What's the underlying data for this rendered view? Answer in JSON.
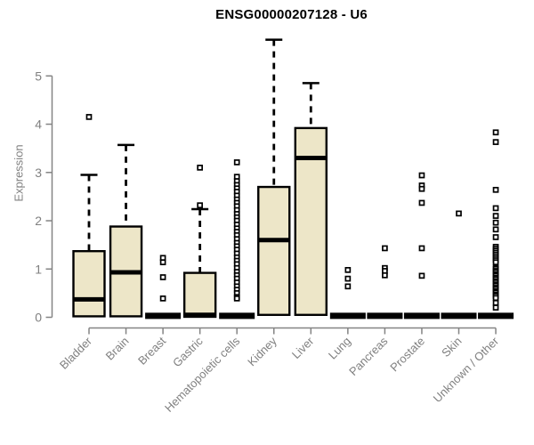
{
  "page": {
    "background": "#ffffff"
  },
  "chart_data": {
    "type": "boxplot",
    "title": "ENSG00000207128 - U6",
    "ylabel": "Expression",
    "xlabel": "",
    "ylim": [
      0,
      5
    ],
    "yticks": [
      0,
      1,
      2,
      3,
      4,
      5
    ],
    "grid": false,
    "legend_position": "none",
    "box_fill": "#EDE6C8",
    "box_stroke": "#000000",
    "axis_color": "#848484",
    "tick_label_color": "#808080",
    "title_color": "#000000",
    "categories": [
      "Bladder",
      "Brain",
      "Breast",
      "Gastric",
      "Hematopoietic cells",
      "Kidney",
      "Liver",
      "Lung",
      "Pancreas",
      "Prostate",
      "Skin",
      "Unknown / Other"
    ],
    "series": [
      {
        "name": "Bladder",
        "whisker_low": 0,
        "q1": 0.02,
        "median": 0.37,
        "q3": 1.37,
        "whisker_high": 2.95,
        "outliers": [
          4.15
        ]
      },
      {
        "name": "Brain",
        "whisker_low": 0,
        "q1": 0.02,
        "median": 0.93,
        "q3": 1.88,
        "whisker_high": 3.57,
        "outliers": []
      },
      {
        "name": "Breast",
        "whisker_low": 0,
        "q1": 0,
        "median": 0.03,
        "q3": 0.05,
        "whisker_high": 0.05,
        "outliers": [
          1.23,
          1.14,
          0.83,
          0.39
        ]
      },
      {
        "name": "Gastric",
        "whisker_low": 0,
        "q1": 0.01,
        "median": 0.05,
        "q3": 0.92,
        "whisker_high": 2.24,
        "outliers": [
          3.1,
          2.32
        ]
      },
      {
        "name": "Hematopoietic cells",
        "whisker_low": 0,
        "q1": 0,
        "median": 0.03,
        "q3": 0.05,
        "whisker_high": 0.05,
        "outliers": [
          3.21,
          2.91,
          2.82,
          2.74,
          2.67,
          2.6,
          2.52,
          2.44,
          2.37,
          2.3,
          2.22,
          2.14,
          2.07,
          2.0,
          1.92,
          1.84,
          1.77,
          1.7,
          1.62,
          1.54,
          1.47,
          1.4,
          1.32,
          1.24,
          1.17,
          1.1,
          1.02,
          0.94,
          0.87,
          0.8,
          0.72,
          0.64,
          0.57,
          0.5,
          0.42,
          0.39
        ]
      },
      {
        "name": "Kidney",
        "whisker_low": 0,
        "q1": 0.05,
        "median": 1.6,
        "q3": 2.7,
        "whisker_high": 5.75,
        "outliers": []
      },
      {
        "name": "Liver",
        "whisker_low": 0,
        "q1": 0.05,
        "median": 3.3,
        "q3": 3.92,
        "whisker_high": 4.85,
        "outliers": []
      },
      {
        "name": "Lung",
        "whisker_low": 0,
        "q1": 0,
        "median": 0.03,
        "q3": 0.05,
        "whisker_high": 0.05,
        "outliers": [
          0.98,
          0.8,
          0.64
        ]
      },
      {
        "name": "Pancreas",
        "whisker_low": 0,
        "q1": 0,
        "median": 0.03,
        "q3": 0.05,
        "whisker_high": 0.05,
        "outliers": [
          1.43,
          1.02,
          0.96,
          0.87
        ]
      },
      {
        "name": "Prostate",
        "whisker_low": 0,
        "q1": 0,
        "median": 0.03,
        "q3": 0.05,
        "whisker_high": 0.05,
        "outliers": [
          2.94,
          2.73,
          2.66,
          2.37,
          1.43,
          0.86
        ]
      },
      {
        "name": "Skin",
        "whisker_low": 0,
        "q1": 0,
        "median": 0.03,
        "q3": 0.05,
        "whisker_high": 0.05,
        "outliers": [
          2.15
        ]
      },
      {
        "name": "Unknown / Other",
        "whisker_low": 0,
        "q1": 0,
        "median": 0.03,
        "q3": 0.05,
        "whisker_high": 0.05,
        "outliers": [
          3.83,
          3.63,
          2.64,
          2.26,
          2.1,
          1.96,
          1.82,
          1.66,
          1.46,
          1.42,
          1.38,
          1.34,
          1.3,
          1.26,
          1.22,
          1.18,
          1.14,
          1.03,
          1.0,
          0.96,
          0.93,
          0.89,
          0.86,
          0.82,
          0.79,
          0.75,
          0.72,
          0.68,
          0.65,
          0.61,
          0.58,
          0.54,
          0.51,
          0.47,
          0.44,
          0.4,
          0.3,
          0.2
        ]
      }
    ]
  }
}
